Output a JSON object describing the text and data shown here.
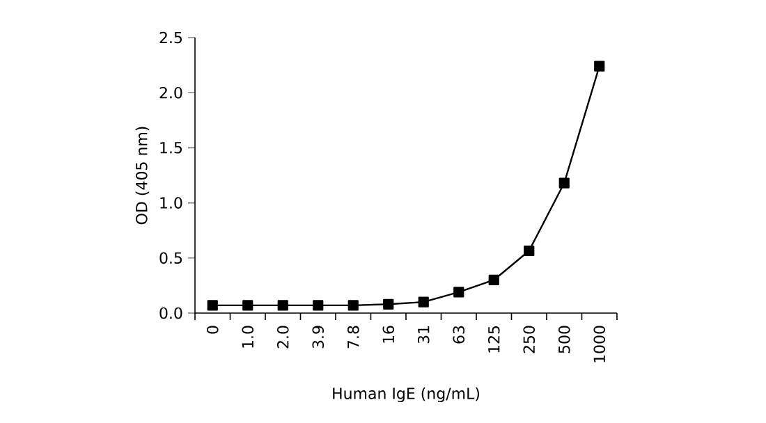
{
  "chart_data": {
    "type": "line",
    "xlabel": "Human IgE (ng/mL)",
    "ylabel": "OD (405 nm)",
    "categories": [
      "0",
      "1.0",
      "2.0",
      "3.9",
      "7.8",
      "16",
      "31",
      "63",
      "125",
      "250",
      "500",
      "1000"
    ],
    "series": [
      {
        "color": "#000000",
        "values": [
          0.07,
          0.07,
          0.07,
          0.07,
          0.07,
          0.08,
          0.1,
          0.19,
          0.3,
          0.565,
          1.18,
          2.24
        ]
      }
    ],
    "ylim": [
      0,
      2.5
    ],
    "yticks": [
      {
        "value": 0,
        "label": "0.0"
      },
      0.5,
      {
        "value": 1,
        "label": "1.0"
      },
      1.5,
      {
        "value": 2,
        "label": "2.0"
      },
      2.5
    ],
    "marker": "square",
    "line_style": "solid"
  }
}
